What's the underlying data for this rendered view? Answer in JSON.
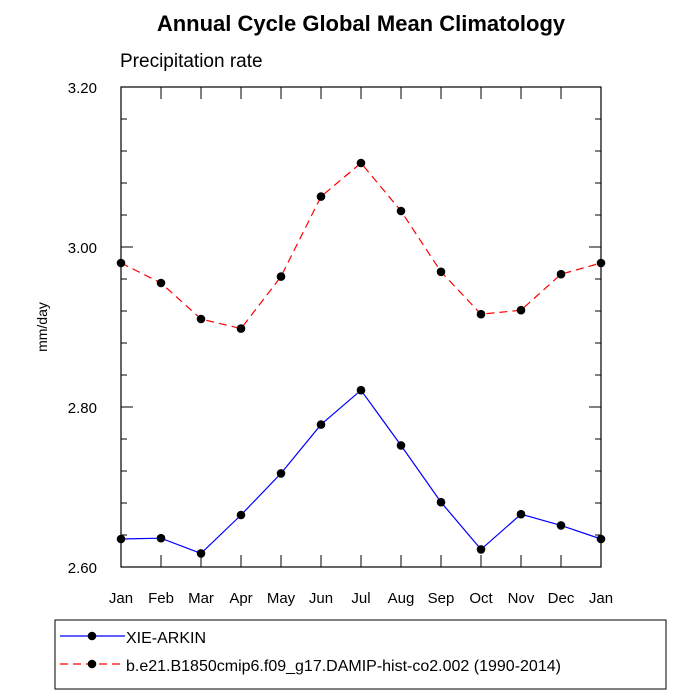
{
  "chart_data": {
    "type": "line",
    "title": "Annual Cycle Global Mean Climatology",
    "subtitle": "Precipitation rate",
    "xlabel": "",
    "ylabel": "mm/day",
    "ylim": [
      2.6,
      3.2
    ],
    "y_ticks": [
      "2.60",
      "2.80",
      "3.00",
      "3.20"
    ],
    "y_tick_values": [
      2.6,
      2.8,
      3.0,
      3.2
    ],
    "categories": [
      "Jan",
      "Feb",
      "Mar",
      "Apr",
      "May",
      "Jun",
      "Jul",
      "Aug",
      "Sep",
      "Oct",
      "Nov",
      "Dec",
      "Jan"
    ],
    "series": [
      {
        "name": "XIE-ARKIN",
        "color": "#0000ff",
        "dash": "solid",
        "values": [
          2.635,
          2.636,
          2.617,
          2.665,
          2.717,
          2.778,
          2.821,
          2.752,
          2.681,
          2.622,
          2.666,
          2.652,
          2.635
        ]
      },
      {
        "name": "b.e21.B1850cmip6.f09_g17.DAMIP-hist-co2.002 (1990-2014)",
        "color": "#ff0000",
        "dash": "dashed",
        "values": [
          2.98,
          2.955,
          2.91,
          2.898,
          2.963,
          3.063,
          3.105,
          3.045,
          2.969,
          2.916,
          2.921,
          2.966,
          2.98
        ]
      }
    ],
    "legend": "bottom"
  }
}
